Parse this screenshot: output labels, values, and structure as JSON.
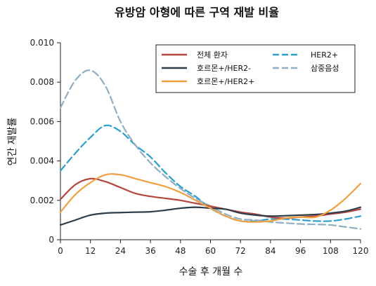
{
  "chart_data": {
    "type": "line",
    "title": "유방암 아형에 따른 구역 재발 비율",
    "xlabel": "수술 후 개월 수",
    "ylabel": "연간 재발률",
    "xlim": [
      0,
      120
    ],
    "ylim": [
      0,
      0.01
    ],
    "x_ticks": [
      "0",
      "12",
      "24",
      "36",
      "48",
      "60",
      "72",
      "84",
      "96",
      "108",
      "120"
    ],
    "y_ticks": [
      "0",
      "0.002",
      "0.004",
      "0.006",
      "0.008",
      "0.010"
    ],
    "grid": false,
    "legend_position": "top-right",
    "x": [
      0,
      6,
      12,
      18,
      24,
      30,
      36,
      42,
      48,
      54,
      60,
      66,
      72,
      78,
      84,
      90,
      96,
      102,
      108,
      114,
      120
    ],
    "series": [
      {
        "name": "전체 환자",
        "color": "#b5473f",
        "dash": "solid",
        "values": [
          0.00205,
          0.0028,
          0.0031,
          0.00295,
          0.00265,
          0.00235,
          0.0022,
          0.0021,
          0.002,
          0.00185,
          0.0017,
          0.00155,
          0.0014,
          0.0013,
          0.00115,
          0.0011,
          0.00115,
          0.0012,
          0.0013,
          0.0014,
          0.00155
        ]
      },
      {
        "name": "호르몬+/HER2-",
        "color": "#2e3d4a",
        "dash": "solid",
        "values": [
          0.00075,
          0.001,
          0.00125,
          0.00135,
          0.00138,
          0.0014,
          0.00142,
          0.0015,
          0.0016,
          0.00165,
          0.0016,
          0.00155,
          0.00135,
          0.00125,
          0.0012,
          0.00122,
          0.00125,
          0.00128,
          0.00135,
          0.00145,
          0.00165
        ]
      },
      {
        "name": "호르몬+/HER2+",
        "color": "#f0a040",
        "dash": "solid",
        "values": [
          0.0014,
          0.0023,
          0.0029,
          0.0033,
          0.0033,
          0.0031,
          0.0029,
          0.0027,
          0.0024,
          0.002,
          0.0016,
          0.0012,
          0.00095,
          0.0009,
          0.00095,
          0.0011,
          0.00115,
          0.00115,
          0.0015,
          0.0021,
          0.00285
        ]
      },
      {
        "name": "HER2+",
        "color": "#2a9fce",
        "dash": "long-dash",
        "values": [
          0.0035,
          0.0044,
          0.0052,
          0.0058,
          0.0055,
          0.0048,
          0.0042,
          0.0034,
          0.0027,
          0.0022,
          0.0016,
          0.0012,
          0.00095,
          0.00095,
          0.00105,
          0.00105,
          0.001,
          0.00095,
          0.00095,
          0.00105,
          0.0012
        ]
      },
      {
        "name": "삼중음성",
        "color": "#8eaec4",
        "dash": "long-dash",
        "values": [
          0.0067,
          0.0081,
          0.0086,
          0.0078,
          0.006,
          0.0048,
          0.0039,
          0.0032,
          0.0026,
          0.0021,
          0.0017,
          0.0013,
          0.00105,
          0.001,
          0.0009,
          0.00085,
          0.0008,
          0.00078,
          0.00075,
          0.00065,
          0.00055
        ]
      }
    ],
    "legend_columns": [
      [
        "전체 환자",
        "호르몬+/HER2-",
        "호르몬+/HER2+"
      ],
      [
        "HER2+",
        "삼중음성"
      ]
    ]
  }
}
